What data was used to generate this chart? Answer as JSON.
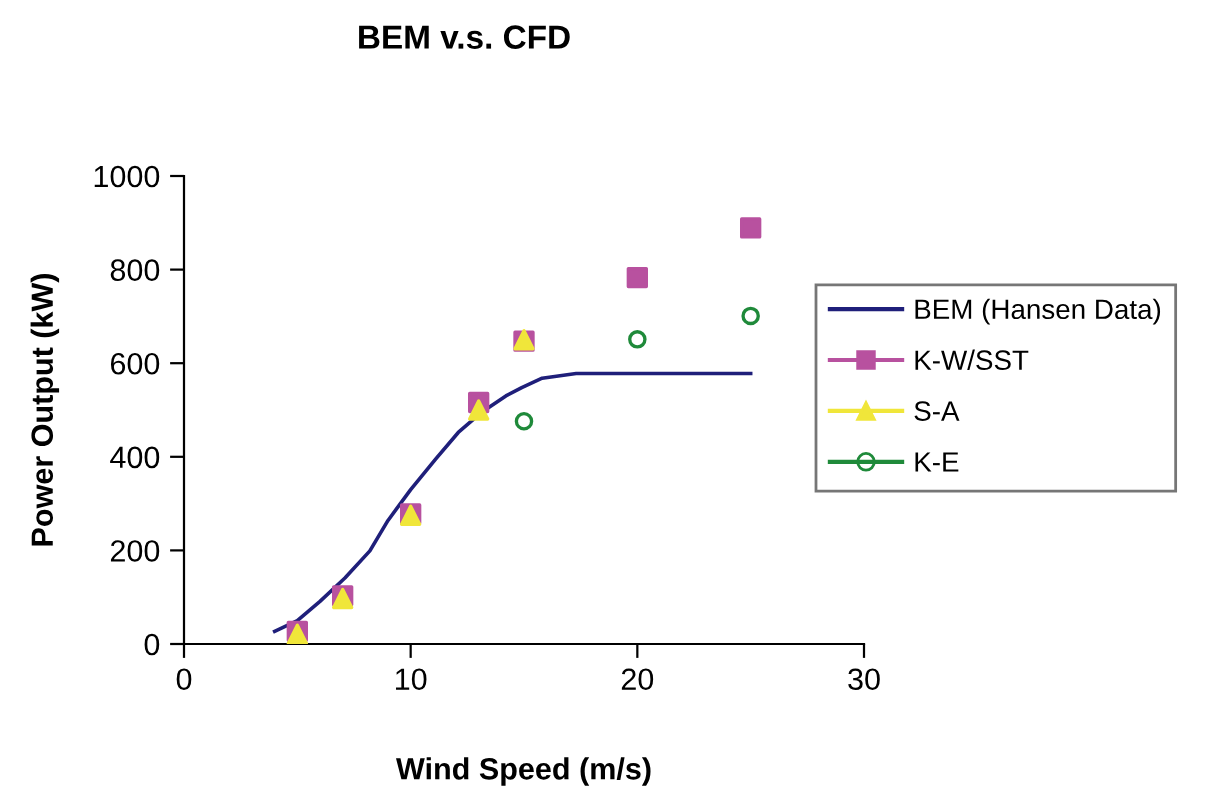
{
  "chart_data": {
    "type": "scatter",
    "title": "BEM v.s. CFD",
    "xlabel": "Wind Speed (m/s)",
    "ylabel": "Power Output (kW)",
    "xlim": [
      0,
      30
    ],
    "xticks": [
      0,
      10,
      20,
      30
    ],
    "ylim": [
      0,
      1000
    ],
    "yticks": [
      0,
      200,
      400,
      600,
      800,
      1000
    ],
    "grid": false,
    "legend": "right",
    "series": [
      {
        "name": "BEM (Hansen Data)",
        "type": "line",
        "marker": "none",
        "line_style": "solid",
        "color": "#1f1f7a",
        "x": [
          4,
          5,
          6,
          7.1,
          8.2,
          9,
          10,
          11.1,
          12.1,
          13.1,
          14.2,
          14.9,
          15.8,
          17.3,
          25
        ],
        "values": [
          27,
          50,
          91,
          141,
          199,
          264,
          330,
          395,
          452,
          494,
          530,
          548,
          568,
          578,
          578
        ]
      },
      {
        "name": "K-W/SST",
        "marker": "square",
        "color": "#b8519f",
        "x": [
          5,
          7,
          10,
          13,
          15,
          20,
          25
        ],
        "values": [
          27,
          103,
          278,
          516,
          647,
          783,
          889
        ]
      },
      {
        "name": "S-A",
        "marker": "triangle",
        "color": "#f0e63a",
        "x": [
          5,
          7,
          10,
          13,
          15
        ],
        "values": [
          21,
          97,
          275,
          500,
          650
        ]
      },
      {
        "name": "K-E",
        "marker": "circle",
        "color": "#1f8a3a",
        "x": [
          15,
          20,
          25
        ],
        "values": [
          476,
          651,
          701
        ]
      }
    ]
  }
}
